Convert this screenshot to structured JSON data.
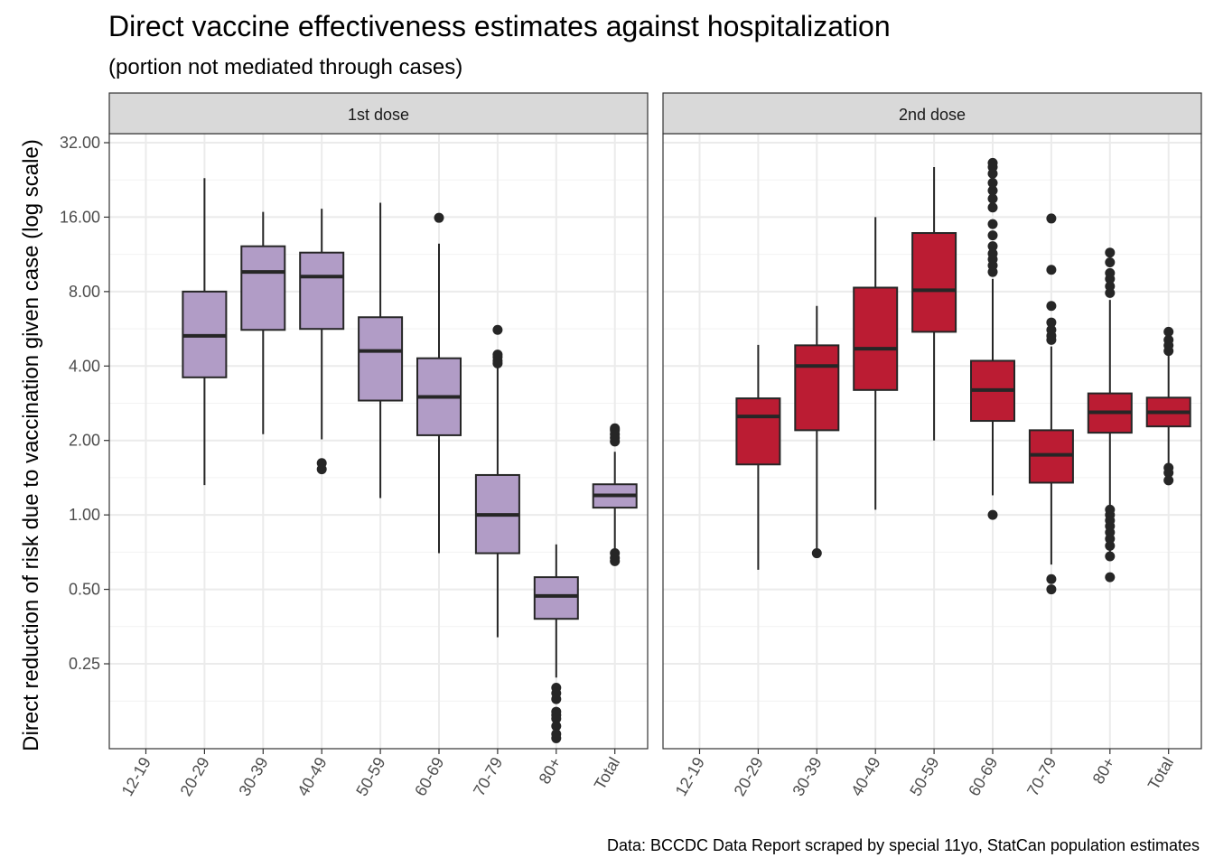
{
  "chart_data": {
    "type": "boxplot",
    "title": "Direct vaccine effectiveness estimates against hospitalization",
    "subtitle": "(portion not mediated through cases)",
    "ylabel": "Direct reduction of risk due to vaccination given case (log scale)",
    "xlabel": "",
    "caption": "Data: BCCDC Data Report scraped by special 11yo, StatCan population estimates",
    "y_scale": "log2",
    "ylim": [
      0.125,
      40
    ],
    "y_ticks": [
      0.25,
      0.5,
      1,
      2,
      4,
      8,
      16,
      32
    ],
    "y_tick_labels": [
      "0.25",
      "0.50",
      "1.00",
      "2.00",
      "4.00",
      "8.00",
      "16.00",
      "32.00"
    ],
    "grid": true,
    "categories": [
      "12-19",
      "20-29",
      "30-39",
      "40-49",
      "50-59",
      "60-69",
      "70-79",
      "80+",
      "Total"
    ],
    "panels": [
      {
        "strip": "1st dose",
        "fill": "#b19cc6",
        "boxes": [
          {
            "category": "20-29",
            "whisker_low": 1.32,
            "q1": 3.6,
            "median": 5.3,
            "q3": 8.0,
            "whisker_high": 23.0,
            "outliers": []
          },
          {
            "category": "30-39",
            "whisker_low": 2.12,
            "q1": 5.6,
            "median": 9.6,
            "q3": 12.2,
            "whisker_high": 16.8,
            "outliers": []
          },
          {
            "category": "40-49",
            "whisker_low": 2.02,
            "q1": 5.65,
            "median": 9.2,
            "q3": 11.5,
            "whisker_high": 17.3,
            "outliers": [
              1.62,
              1.53
            ]
          },
          {
            "category": "50-59",
            "whisker_low": 1.17,
            "q1": 2.9,
            "median": 4.6,
            "q3": 6.3,
            "whisker_high": 18.3,
            "outliers": []
          },
          {
            "category": "60-69",
            "whisker_low": 0.7,
            "q1": 2.1,
            "median": 3.0,
            "q3": 4.3,
            "whisker_high": 12.5,
            "outliers": [
              15.9
            ]
          },
          {
            "category": "70-79",
            "whisker_low": 0.32,
            "q1": 0.7,
            "median": 1.0,
            "q3": 1.45,
            "whisker_high": 4.4,
            "outliers": [
              4.45,
              4.35,
              4.2,
              4.1,
              5.6
            ]
          },
          {
            "category": "80+",
            "whisker_low": 0.22,
            "q1": 0.38,
            "median": 0.47,
            "q3": 0.56,
            "whisker_high": 0.76,
            "outliers": [
              0.2,
              0.19,
              0.18,
              0.16,
              0.155,
              0.15,
              0.14,
              0.13,
              0.125
            ]
          },
          {
            "category": "Total",
            "whisker_low": 0.7,
            "q1": 1.07,
            "median": 1.2,
            "q3": 1.33,
            "whisker_high": 1.8,
            "outliers": [
              1.98,
              2.05,
              2.12,
              2.2,
              2.24,
              0.7,
              0.67,
              0.65
            ]
          }
        ]
      },
      {
        "strip": "2nd dose",
        "fill": "#bb1c33",
        "boxes": [
          {
            "category": "20-29",
            "whisker_low": 0.6,
            "q1": 1.6,
            "median": 2.5,
            "q3": 2.96,
            "whisker_high": 4.87,
            "outliers": []
          },
          {
            "category": "30-39",
            "whisker_low": 0.73,
            "q1": 2.2,
            "median": 4.0,
            "q3": 4.85,
            "whisker_high": 7.0,
            "outliers": [
              0.7
            ]
          },
          {
            "category": "40-49",
            "whisker_low": 1.05,
            "q1": 3.2,
            "median": 4.7,
            "q3": 8.3,
            "whisker_high": 16.0,
            "outliers": []
          },
          {
            "category": "50-59",
            "whisker_low": 2.0,
            "q1": 5.5,
            "median": 8.1,
            "q3": 13.8,
            "whisker_high": 25.5,
            "outliers": []
          },
          {
            "category": "60-69",
            "whisker_low": 1.2,
            "q1": 2.4,
            "median": 3.2,
            "q3": 4.2,
            "whisker_high": 9.0,
            "outliers": [
              1.0,
              9.6,
              10.2,
              10.8,
              11.4,
              12.2,
              13.5,
              15.0,
              17.5,
              19.0,
              20.5,
              22.0,
              24.0,
              25.5,
              26.5
            ]
          },
          {
            "category": "70-79",
            "whisker_low": 0.63,
            "q1": 1.35,
            "median": 1.75,
            "q3": 2.2,
            "whisker_high": 4.8,
            "outliers": [
              0.55,
              0.5,
              5.1,
              5.3,
              5.6,
              6.0,
              7.0,
              9.8,
              15.8
            ]
          },
          {
            "category": "80+",
            "whisker_low": 0.66,
            "q1": 2.15,
            "median": 2.6,
            "q3": 3.1,
            "whisker_high": 7.4,
            "outliers": [
              0.75,
              0.8,
              0.85,
              0.9,
              0.95,
              1.0,
              1.05,
              0.68,
              0.56,
              7.9,
              8.4,
              9.0,
              9.5,
              10.5,
              11.5
            ]
          },
          {
            "category": "Total",
            "whisker_low": 1.6,
            "q1": 2.28,
            "median": 2.6,
            "q3": 2.98,
            "whisker_high": 4.4,
            "outliers": [
              1.55,
              1.48,
              1.38,
              4.6,
              4.85,
              5.1,
              5.5
            ]
          }
        ]
      }
    ]
  }
}
